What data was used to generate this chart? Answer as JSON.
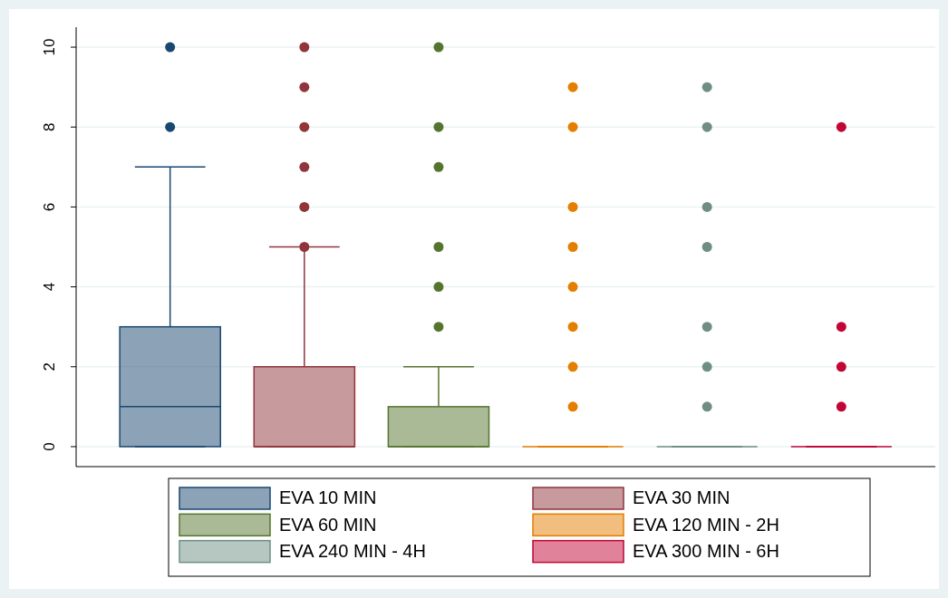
{
  "chart_data": {
    "type": "box",
    "categories": [
      null
    ],
    "ylim": [
      -0.5,
      10.5
    ],
    "yticks": [
      0,
      2,
      4,
      6,
      8,
      10
    ],
    "grid": "y",
    "legend": "bottom",
    "marker": "circle",
    "series": [
      {
        "name": "EVA 10 MIN",
        "color": "#1a476f",
        "boxes": [
          {
            "low": 0,
            "q1": 0,
            "median": 1,
            "q3": 3,
            "high": 7,
            "outliers": [
              8,
              10
            ]
          }
        ]
      },
      {
        "name": "EVA 30 MIN",
        "color": "#90353b",
        "boxes": [
          {
            "low": 0,
            "q1": 0,
            "median": 0,
            "q3": 2,
            "high": 5,
            "outliers": [
              5,
              6,
              7,
              8,
              9,
              10
            ]
          }
        ]
      },
      {
        "name": "EVA 60 MIN",
        "color": "#55752f",
        "boxes": [
          {
            "low": 0,
            "q1": 0,
            "median": 0,
            "q3": 1,
            "high": 2,
            "outliers": [
              3,
              4,
              5,
              7,
              8,
              10
            ]
          }
        ]
      },
      {
        "name": "EVA 120 MIN - 2H",
        "color": "#e37e00",
        "boxes": [
          {
            "low": 0,
            "q1": 0,
            "median": 0,
            "q3": 0,
            "high": 0,
            "outliers": [
              1,
              2,
              3,
              4,
              5,
              6,
              8,
              9
            ]
          }
        ]
      },
      {
        "name": "EVA 240 MIN - 4H",
        "color": "#6e8e84",
        "boxes": [
          {
            "low": 0,
            "q1": 0,
            "median": 0,
            "q3": 0,
            "high": 0,
            "outliers": [
              1,
              2,
              3,
              5,
              6,
              8,
              9
            ]
          }
        ]
      },
      {
        "name": "EVA 300 MIN - 6H",
        "color": "#c10534",
        "boxes": [
          {
            "low": 0,
            "q1": 0,
            "median": 0,
            "q3": 0,
            "high": 0,
            "outliers": [
              1,
              2,
              3,
              8
            ]
          }
        ]
      }
    ]
  }
}
